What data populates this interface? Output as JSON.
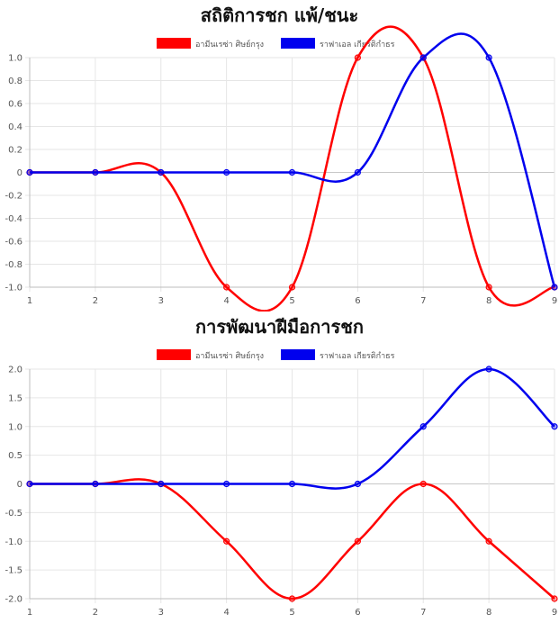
{
  "chart_data": [
    {
      "type": "line",
      "title": "สถิติการชก แพ้/ชนะ",
      "x": [
        1,
        2,
        3,
        4,
        5,
        6,
        7,
        8,
        9
      ],
      "ylim": [
        -1.0,
        1.0
      ],
      "yticks": [
        "1.0",
        "0.8",
        "0.6",
        "0.4",
        "0.2",
        "0",
        "-0.2",
        "-0.4",
        "-0.6",
        "-0.8",
        "-1.0"
      ],
      "grid": true,
      "legend_position": "top",
      "series": [
        {
          "name": "อามีนเรซ่า ศิษย์กรุง",
          "color": "#ff0000",
          "values": [
            0,
            0,
            0,
            -1,
            -1,
            1,
            1,
            -1,
            -1
          ]
        },
        {
          "name": "ราฟาเอล เกียรติกำธร",
          "color": "#0000ee",
          "values": [
            0,
            0,
            0,
            0,
            0,
            0,
            1,
            1,
            -1
          ]
        }
      ]
    },
    {
      "type": "line",
      "title": "การพัฒนาฝีมือการชก",
      "x": [
        1,
        2,
        3,
        4,
        5,
        6,
        7,
        8,
        9
      ],
      "ylim": [
        -2.0,
        2.0
      ],
      "yticks": [
        "2.0",
        "1.5",
        "1.0",
        "0.5",
        "0",
        "-0.5",
        "-1.0",
        "-1.5",
        "-2.0"
      ],
      "grid": true,
      "legend_position": "top",
      "series": [
        {
          "name": "อามีนเรซ่า ศิษย์กรุง",
          "color": "#ff0000",
          "values": [
            0,
            0,
            0,
            -1,
            -2,
            -1,
            0,
            -1,
            -2
          ]
        },
        {
          "name": "ราฟาเอล เกียรติกำธร",
          "color": "#0000ee",
          "values": [
            0,
            0,
            0,
            0,
            0,
            0,
            1,
            2,
            1
          ]
        }
      ]
    }
  ]
}
